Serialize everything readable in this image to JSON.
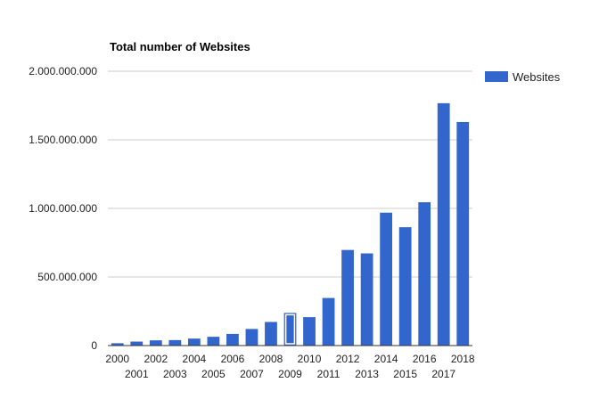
{
  "chart_data": {
    "type": "bar",
    "title": "Total number of Websites",
    "xlabel": "",
    "ylabel": "",
    "categories": [
      "2000",
      "2001",
      "2002",
      "2003",
      "2004",
      "2005",
      "2006",
      "2007",
      "2008",
      "2009",
      "2010",
      "2011",
      "2012",
      "2013",
      "2014",
      "2015",
      "2016",
      "2017",
      "2018"
    ],
    "series": [
      {
        "name": "Websites",
        "values": [
          17000000,
          29000000,
          38000000,
          40000000,
          51000000,
          64000000,
          85000000,
          121000000,
          172000000,
          238000000,
          207000000,
          347000000,
          697000000,
          672000000,
          969000000,
          863000000,
          1045000000,
          1767000000,
          1630000000
        ],
        "color": "#3366cc"
      }
    ],
    "highlighted_category": "2009",
    "ylim": [
      0,
      2000000000
    ],
    "y_ticks": [
      0,
      500000000,
      1000000000,
      1500000000,
      2000000000
    ],
    "y_tick_labels": [
      "0",
      "500.000.000",
      "1.000.000.000",
      "1.500.000.000",
      "2.000.000.000"
    ],
    "grid": true,
    "legend_position": "right"
  }
}
